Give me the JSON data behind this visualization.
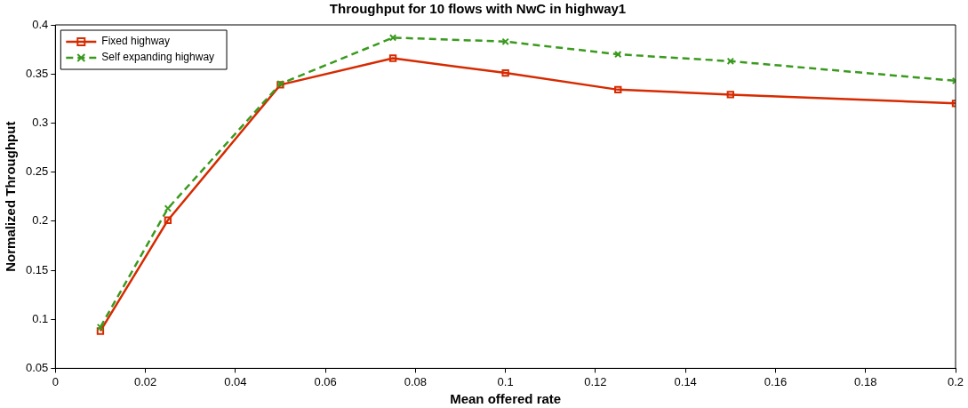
{
  "chart_data": {
    "type": "line",
    "title": "Throughput for 10 flows with NwC in highway1",
    "xlabel": "Mean offered rate",
    "ylabel": "Normalized Throughput",
    "x": [
      0.01,
      0.025,
      0.05,
      0.075,
      0.1,
      0.125,
      0.15,
      0.2
    ],
    "series": [
      {
        "name": "Fixed highway",
        "color": "#d62a00",
        "values": [
          0.088,
          0.201,
          0.339,
          0.366,
          0.351,
          0.334,
          0.329,
          0.32
        ],
        "marker": "square",
        "line_style": "solid"
      },
      {
        "name": "Self expanding highway",
        "color": "#3a9a1e",
        "values": [
          0.092,
          0.213,
          0.34,
          0.387,
          0.383,
          0.37,
          0.363,
          0.343
        ],
        "marker": "cross",
        "line_style": "dashed"
      }
    ],
    "xlim": [
      0,
      0.2
    ],
    "xticks": [
      0,
      0.02,
      0.04,
      0.06,
      0.08,
      0.1,
      0.12,
      0.14,
      0.16,
      0.18,
      0.2
    ],
    "ylim": [
      0.05,
      0.4
    ],
    "yticks": [
      0.05,
      0.1,
      0.15,
      0.2,
      0.25,
      0.3,
      0.35,
      0.4
    ],
    "grid": false,
    "legend": "top left"
  }
}
